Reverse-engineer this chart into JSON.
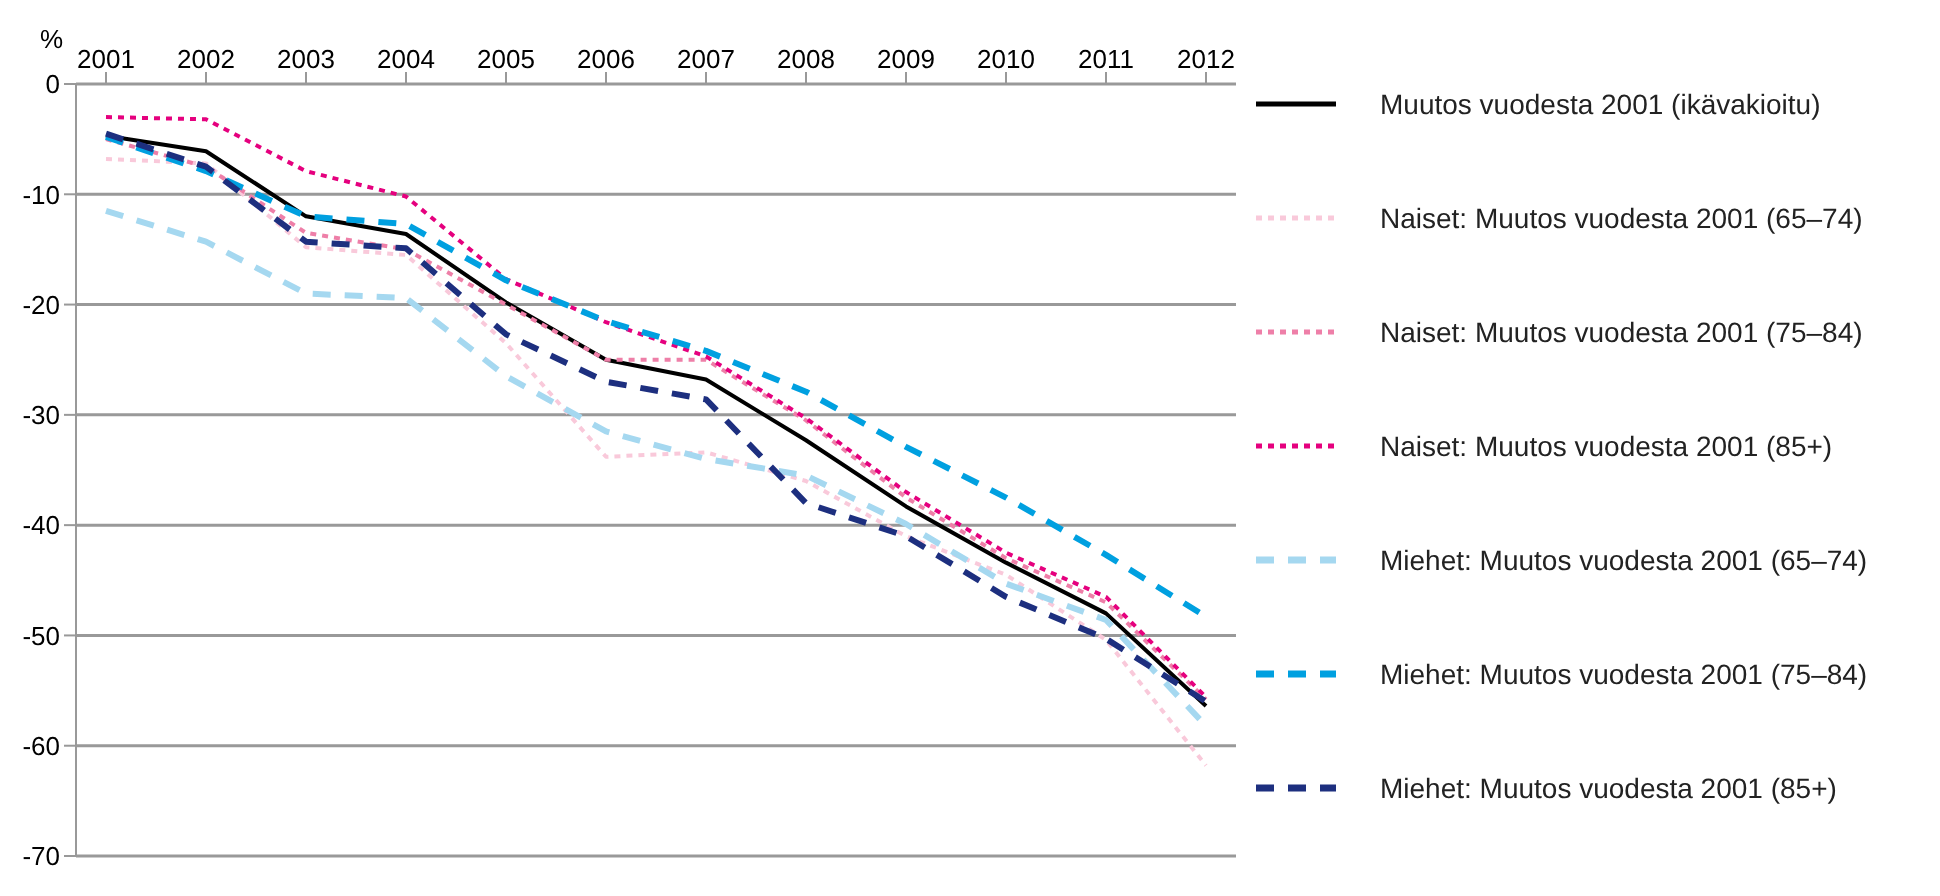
{
  "chart_data": {
    "type": "line",
    "ylabel": "%",
    "categories": [
      "2001",
      "2002",
      "2003",
      "2004",
      "2005",
      "2006",
      "2007",
      "2008",
      "2009",
      "2010",
      "2011",
      "2012"
    ],
    "ylim": [
      -70,
      0
    ],
    "yticks": [
      0,
      -10,
      -20,
      -30,
      -40,
      -50,
      -60,
      -70
    ],
    "grid": "y",
    "legend": "right",
    "marker": "none",
    "series": [
      {
        "name": "Muutos vuodesta 2001 (ikävakioitu)",
        "color": "#000000",
        "line_style": "solid",
        "values": [
          -4.7,
          -6.1,
          -12,
          -13.6,
          -19.8,
          -25,
          -26.8,
          -32.3,
          -38.3,
          -43.4,
          -48,
          -56.4
        ]
      },
      {
        "name": "Naiset: Muutos vuodesta 2001 (65–74)",
        "color": "#f9c9da",
        "line_style": "dotted",
        "values": [
          -6.8,
          -7.2,
          -14.8,
          -15.5,
          -23.5,
          -33.8,
          -33.4,
          -36,
          -41,
          -44.5,
          -50.4,
          -61.8
        ]
      },
      {
        "name": "Naiset: Muutos vuodesta 2001 (75–84)",
        "color": "#ee7fa8",
        "line_style": "dotted",
        "values": [
          -5,
          -7.5,
          -13.5,
          -15,
          -20,
          -25,
          -25,
          -30.5,
          -37.5,
          -43,
          -47,
          -55.8
        ]
      },
      {
        "name": "Naiset: Muutos vuodesta 2001 (85+)",
        "color": "#e5007e",
        "line_style": "dotted",
        "values": [
          -3,
          -3.2,
          -7.9,
          -10.2,
          -17.7,
          -21.6,
          -24.7,
          -30.3,
          -37,
          -42.5,
          -46.5,
          -55.6
        ]
      },
      {
        "name": "Miehet: Muutos vuodesta 2001 (65–74)",
        "color": "#a5d8f0",
        "line_style": "dashed",
        "values": [
          -11.5,
          -14.3,
          -19,
          -19.4,
          -26.5,
          -31.5,
          -34,
          -35.5,
          -39.9,
          -45.3,
          -48.6,
          -58.2
        ]
      },
      {
        "name": "Miehet: Muutos vuodesta 2001 (75–84)",
        "color": "#00a0e0",
        "line_style": "dashed",
        "values": [
          -4.8,
          -7.9,
          -12,
          -12.7,
          -17.8,
          -21.5,
          -24.2,
          -27.9,
          -32.9,
          -37.5,
          -42.7,
          -48.3
        ]
      },
      {
        "name": "Miehet: Muutos vuodesta 2001 (85+)",
        "color": "#1d2f7f",
        "line_style": "dashed",
        "values": [
          -4.5,
          -7.5,
          -14.3,
          -14.9,
          -22.7,
          -27,
          -28.6,
          -38,
          -41,
          -46.5,
          -50.3,
          -56
        ]
      }
    ]
  }
}
